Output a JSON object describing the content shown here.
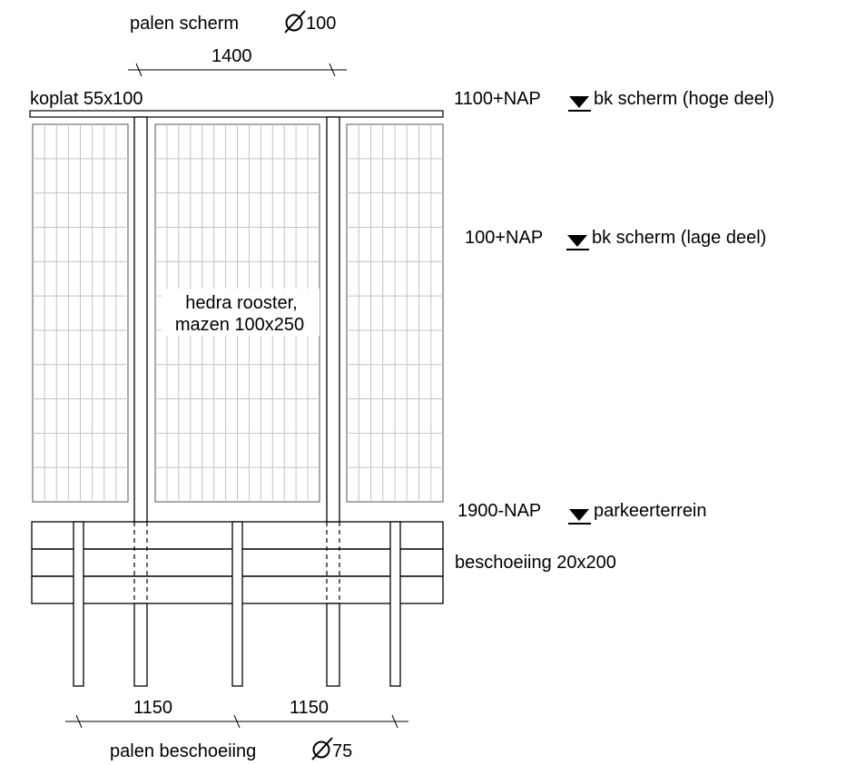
{
  "labels": {
    "posts_screen_text": "palen scherm",
    "posts_screen_size": "100",
    "spacing_top": "1400",
    "coping": "koplat 55x100",
    "level_high_value": "1100+NAP",
    "level_high_text": "bk scherm (hoge deel)",
    "level_low_value": "100+NAP",
    "level_low_text": "bk scherm (lage deel)",
    "grid_line1": "hedra rooster,",
    "grid_line2": "mazen 100x250",
    "level_ground_value": "1900-NAP",
    "level_ground_text": "parkeerterrein",
    "sheeting": "beschoeiing 20x200",
    "spacing_bottom_1": "1150",
    "spacing_bottom_2": "1150",
    "posts_sheeting_text": "palen beschoeiing",
    "posts_sheeting_size": "75"
  },
  "symbols": {
    "diameter": "diameter-symbol",
    "level_marker": "level-triangle-icon"
  }
}
